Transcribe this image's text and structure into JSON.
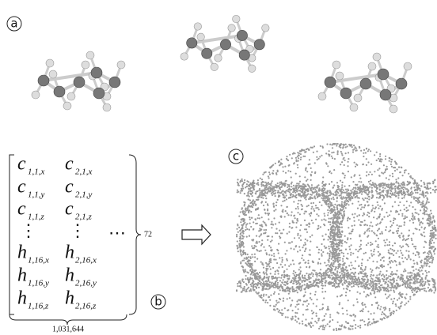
{
  "panels": {
    "a": "a",
    "b": "b",
    "c": "c"
  },
  "matrix": {
    "rows": [
      [
        {
          "base": "c",
          "sub": "1,1,x"
        },
        {
          "base": "c",
          "sub": "2,1,x"
        }
      ],
      [
        {
          "base": "c",
          "sub": "1,1,y"
        },
        {
          "base": "c",
          "sub": "2,1,y"
        }
      ],
      [
        {
          "base": "c",
          "sub": "1,1,z"
        },
        {
          "base": "c",
          "sub": "2,1,z"
        }
      ],
      [
        {
          "base": "h",
          "sub": "1,16,x"
        },
        {
          "base": "h",
          "sub": "2,16,x"
        }
      ],
      [
        {
          "base": "h",
          "sub": "1,16,y"
        },
        {
          "base": "h",
          "sub": "2,16,y"
        }
      ],
      [
        {
          "base": "h",
          "sub": "1,16,z"
        },
        {
          "base": "h",
          "sub": "2,16,z"
        }
      ]
    ],
    "vdots": [
      "⋮",
      "⋮"
    ],
    "hdots": "⋯",
    "row_count": "72",
    "column_count": "1,031,644"
  }
}
